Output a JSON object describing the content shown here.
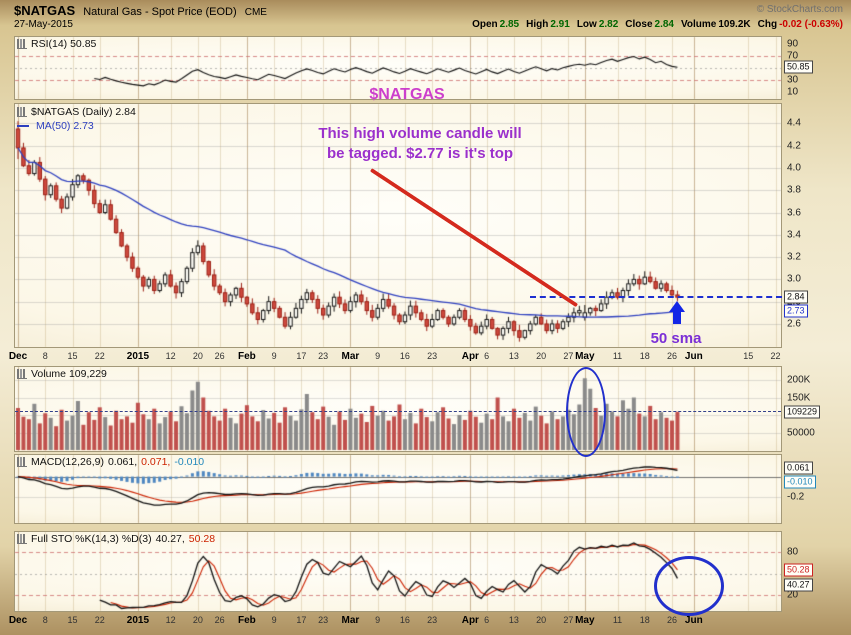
{
  "header": {
    "symbol": "$NATGAS",
    "description": "Natural Gas - Spot Price (EOD)",
    "exchange": "CME",
    "copyright": "© StockCharts.com",
    "date": "27-May-2015",
    "quote": {
      "open_label": "Open",
      "open": "2.85",
      "high_label": "High",
      "high": "2.91",
      "low_label": "Low",
      "low": "2.82",
      "close_label": "Close",
      "close": "2.84",
      "volume_label": "Volume",
      "volume": "109.2K",
      "chg_label": "Chg",
      "chg": "-0.02 (-0.63%)"
    }
  },
  "panels": {
    "rsi": {
      "legend": "RSI(14) 50.85",
      "ticks": [
        90,
        70,
        30,
        10
      ],
      "last_box": "50.85"
    },
    "main": {
      "legend": "$NATGAS (Daily) 2.84",
      "ma_legend": "MA(50) 2.73",
      "ticks": [
        4.4,
        4.2,
        4.0,
        3.8,
        3.6,
        3.4,
        3.2,
        3.0,
        2.8,
        2.6
      ],
      "last_box": "2.84",
      "ma_box": "2.73"
    },
    "volume": {
      "legend": "Volume 109,229",
      "ticks": [
        {
          "t": "200K",
          "v": 200000
        },
        {
          "t": "150K",
          "v": 150000
        },
        {
          "t": "50000",
          "v": 50000
        }
      ],
      "last_box": "109229"
    },
    "macd": {
      "legend": "MACD(12,26,9)",
      "value_macd": "0.061,",
      "value_signal": "0.071,",
      "value_hist": "-0.010",
      "ticks": [
        {
          "t": "-0.2",
          "v": -0.2
        }
      ],
      "box_macd": "0.061",
      "box_hist": "-0.010"
    },
    "sto": {
      "legend": "Full STO %K(14,3) %D(3)",
      "value_k": "40.27,",
      "value_d": "50.28",
      "ticks": [
        {
          "t": "80",
          "v": 80
        },
        {
          "t": "20",
          "v": 20
        }
      ],
      "box_d": "50.28",
      "box_k": "40.27"
    }
  },
  "annotations": {
    "title": "$NATGAS",
    "note1": "This high volume candle will",
    "note2": "be tagged.  $2.77 is it's top",
    "sma": "50 sma"
  },
  "x_axis": {
    "ticks": [
      {
        "t": "Dec",
        "i": 0,
        "m": 1
      },
      {
        "t": "8",
        "i": 5
      },
      {
        "t": "15",
        "i": 10
      },
      {
        "t": "22",
        "i": 15
      },
      {
        "t": "2015",
        "i": 22,
        "m": 1
      },
      {
        "t": "12",
        "i": 28
      },
      {
        "t": "20",
        "i": 33
      },
      {
        "t": "26",
        "i": 37
      },
      {
        "t": "Feb",
        "i": 42,
        "m": 1
      },
      {
        "t": "9",
        "i": 47
      },
      {
        "t": "17",
        "i": 52
      },
      {
        "t": "23",
        "i": 56
      },
      {
        "t": "Mar",
        "i": 61,
        "m": 1
      },
      {
        "t": "9",
        "i": 66
      },
      {
        "t": "16",
        "i": 71
      },
      {
        "t": "23",
        "i": 76
      },
      {
        "t": "Apr",
        "i": 83,
        "m": 1
      },
      {
        "t": "6",
        "i": 86
      },
      {
        "t": "13",
        "i": 91
      },
      {
        "t": "20",
        "i": 96
      },
      {
        "t": "27",
        "i": 101
      },
      {
        "t": "May",
        "i": 104,
        "m": 1
      },
      {
        "t": "11",
        "i": 110
      },
      {
        "t": "18",
        "i": 115
      },
      {
        "t": "26",
        "i": 120
      },
      {
        "t": "Jun",
        "i": 124,
        "m": 1
      },
      {
        "t": "15",
        "i": 134
      },
      {
        "t": "22",
        "i": 139
      }
    ]
  },
  "chart_data": {
    "type": "candlestick",
    "symbol": "$NATGAS",
    "timeframe": "daily",
    "date_range": "Dec-2014 to 27-May-2015",
    "price_ticks": [
      2.6,
      2.8,
      3.0,
      3.2,
      3.4,
      3.6,
      3.8,
      4.0,
      4.2,
      4.4
    ],
    "indicators": {
      "sma": 50,
      "rsi": 14,
      "macd": [
        12,
        26,
        9
      ],
      "full_sto": [
        14,
        3,
        3
      ]
    },
    "last": {
      "open": 2.85,
      "high": 2.91,
      "low": 2.82,
      "close": 2.84,
      "volume": 109229,
      "rsi": 50.85,
      "sma50": 2.73,
      "macd": 0.061,
      "macd_signal": 0.071,
      "macd_hist": -0.01,
      "sto_k": 40.27,
      "sto_d": 50.28,
      "tagged_candle_top": 2.77
    },
    "closes": [
      4.18,
      4.02,
      3.95,
      4.05,
      3.9,
      3.76,
      3.84,
      3.72,
      3.64,
      3.74,
      3.85,
      3.93,
      3.89,
      3.8,
      3.68,
      3.6,
      3.67,
      3.54,
      3.42,
      3.3,
      3.2,
      3.1,
      3.02,
      2.94,
      3.0,
      2.9,
      2.96,
      3.04,
      2.94,
      2.88,
      2.98,
      3.1,
      3.24,
      3.3,
      3.16,
      3.04,
      2.94,
      2.88,
      2.8,
      2.86,
      2.92,
      2.84,
      2.78,
      2.7,
      2.64,
      2.72,
      2.8,
      2.74,
      2.66,
      2.58,
      2.66,
      2.74,
      2.82,
      2.88,
      2.82,
      2.74,
      2.68,
      2.76,
      2.84,
      2.78,
      2.72,
      2.8,
      2.86,
      2.8,
      2.72,
      2.66,
      2.74,
      2.82,
      2.76,
      2.68,
      2.62,
      2.68,
      2.76,
      2.7,
      2.64,
      2.58,
      2.64,
      2.72,
      2.66,
      2.6,
      2.66,
      2.72,
      2.64,
      2.58,
      2.52,
      2.58,
      2.64,
      2.56,
      2.5,
      2.56,
      2.62,
      2.54,
      2.48,
      2.54,
      2.6,
      2.66,
      2.6,
      2.54,
      2.6,
      2.56,
      2.62,
      2.66,
      2.7,
      2.72,
      2.7,
      2.74,
      2.72,
      2.78,
      2.84,
      2.88,
      2.84,
      2.9,
      2.96,
      3.0,
      2.96,
      3.02,
      2.98,
      2.92,
      2.96,
      2.9,
      2.86,
      2.84
    ],
    "volumes": [
      120000,
      95000,
      88000,
      132000,
      76000,
      105000,
      92000,
      68000,
      115000,
      84000,
      98000,
      140000,
      72000,
      108000,
      86000,
      122000,
      94000,
      70000,
      112000,
      88000,
      96000,
      78000,
      135000,
      102000,
      88000,
      118000,
      76000,
      94000,
      110000,
      82000,
      125000,
      105000,
      170000,
      195000,
      150000,
      112000,
      96000,
      84000,
      118000,
      92000,
      76000,
      104000,
      128000,
      96000,
      82000,
      114000,
      90000,
      106000,
      78000,
      122000,
      98000,
      84000,
      116000,
      160000,
      108000,
      88000,
      124000,
      95000,
      72000,
      110000,
      86000,
      118000,
      92000,
      104000,
      80000,
      126000,
      98000,
      112000,
      84000,
      96000,
      130000,
      88000,
      106000,
      76000,
      118000,
      94000,
      82000,
      108000,
      122000,
      90000,
      74000,
      100000,
      86000,
      112000,
      95000,
      78000,
      104000,
      88000,
      150000,
      96000,
      82000,
      118000,
      92000,
      106000,
      84000,
      124000,
      98000,
      76000,
      110000,
      88000,
      96000,
      115000,
      102000,
      130000,
      205000,
      175000,
      120000,
      98000,
      132000,
      110000,
      96000,
      142000,
      118000,
      150000,
      104000,
      96000,
      126000,
      88000,
      108000,
      92000,
      84000,
      109229
    ],
    "candle_overrides": {
      "0": {
        "o": 4.35,
        "h": 4.42,
        "l": 4.08
      },
      "104": {
        "o": 2.66,
        "h": 2.77,
        "l": 2.63
      }
    }
  }
}
